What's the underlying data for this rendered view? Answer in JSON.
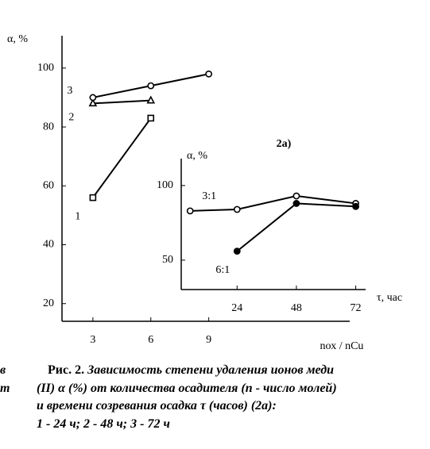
{
  "chart_data": [
    {
      "type": "line",
      "y_label": "α, %",
      "x_label": "nох / nCu",
      "xlim": [
        1.4,
        16.3
      ],
      "ylim": [
        14,
        111
      ],
      "xticks": [
        3,
        6,
        9
      ],
      "yticks": [
        20,
        40,
        60,
        80,
        100
      ],
      "series": [
        {
          "name": "1",
          "marker": "square",
          "color": "#000",
          "x": [
            3,
            6
          ],
          "values": [
            56,
            83
          ]
        },
        {
          "name": "2",
          "marker": "triangle",
          "color": "#000",
          "x": [
            3,
            6
          ],
          "values": [
            88,
            89
          ]
        },
        {
          "name": "3",
          "marker": "circle",
          "color": "#000",
          "x": [
            3,
            6,
            9
          ],
          "values": [
            90,
            94,
            98
          ]
        }
      ]
    },
    {
      "type": "line",
      "title": "2а)",
      "y_label": "α, %",
      "x_label": "τ, час",
      "xlim": [
        1.4,
        76
      ],
      "ylim": [
        30.3,
        118
      ],
      "xticks": [
        24,
        48,
        72
      ],
      "yticks": [
        50,
        100
      ],
      "series": [
        {
          "name": "3:1",
          "marker": "circle",
          "color": "#000",
          "x": [
            5,
            24,
            48,
            72
          ],
          "values": [
            83,
            84,
            93,
            88
          ]
        },
        {
          "name": "6:1",
          "marker": "dot",
          "color": "#000",
          "x": [
            24,
            48,
            72
          ],
          "values": [
            56,
            88,
            86
          ]
        }
      ]
    }
  ],
  "caption": {
    "label": "Рис. 2.",
    "lines": [
      "Зависимость степени удаления ионов меди",
      "(II) α (%) от количества осадителя (n - число молей)",
      "и времени созревания осадка τ (часов) (2а):",
      "1 - 24 ч; 2 - 48 ч; 3 - 72 ч"
    ]
  },
  "fragments": [
    "в",
    "т"
  ]
}
